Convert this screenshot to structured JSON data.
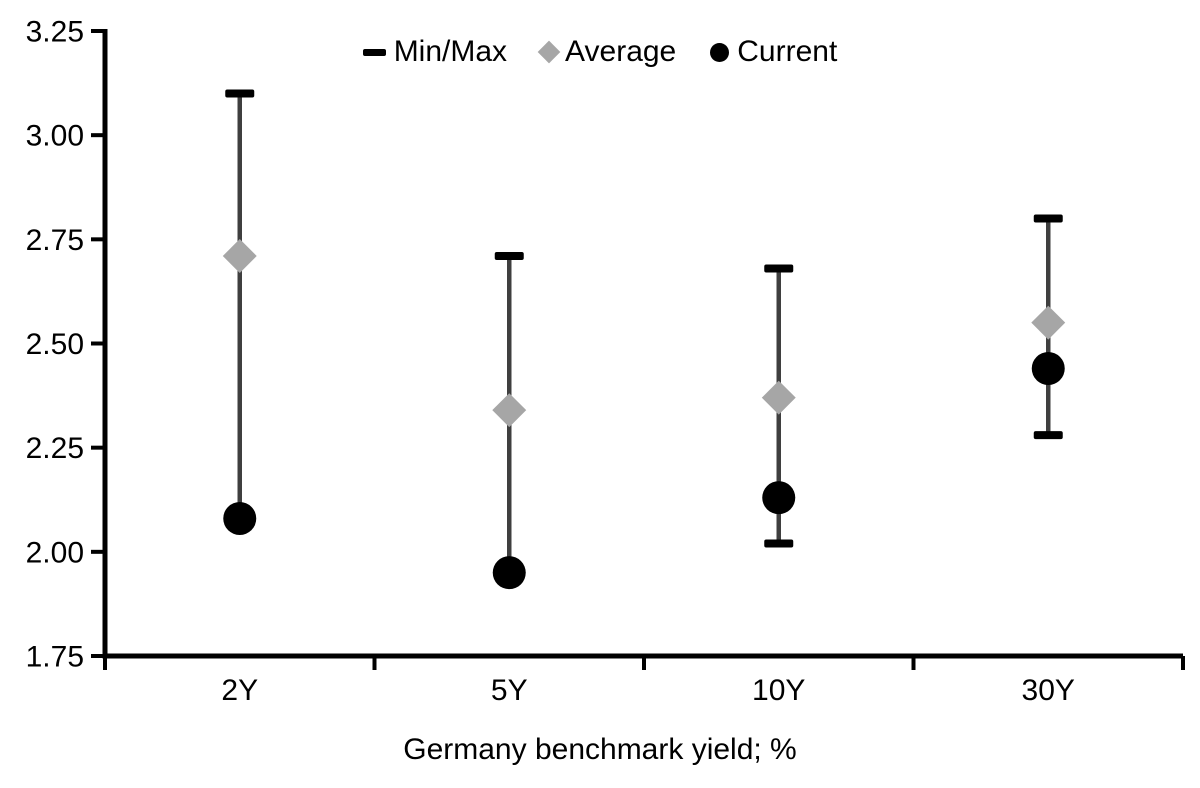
{
  "chart_data": {
    "type": "scatter",
    "subtype": "min-max-range-dot-plot",
    "categories": [
      "2Y",
      "5Y",
      "10Y",
      "30Y"
    ],
    "series": [
      {
        "name": "Min/Max",
        "marker": "dash",
        "min": [
          2.08,
          1.95,
          2.02,
          2.28
        ],
        "max": [
          3.1,
          2.71,
          2.68,
          2.8
        ]
      },
      {
        "name": "Average",
        "marker": "diamond",
        "values": [
          2.71,
          2.34,
          2.37,
          2.55
        ]
      },
      {
        "name": "Current",
        "marker": "circle",
        "values": [
          2.08,
          1.95,
          2.13,
          2.44
        ]
      }
    ],
    "title": "",
    "xlabel": "Germany benchmark yield; %",
    "ylabel": "",
    "ylim": [
      1.75,
      3.25
    ],
    "y_tick_step": 0.25,
    "y_tick_labels": [
      "1.75",
      "2.00",
      "2.25",
      "2.50",
      "2.75",
      "3.00",
      "3.25"
    ],
    "x_tick_labels": [
      "2Y",
      "5Y",
      "10Y",
      "30Y"
    ],
    "legend_position": "top-center",
    "grid": false,
    "colors": {
      "current": "#000000",
      "average": "#A6A6A6",
      "whisker": "#3F3F3F",
      "cap": "#000000",
      "axis": "#000000",
      "text": "#000000",
      "background": "#FFFFFF"
    }
  }
}
